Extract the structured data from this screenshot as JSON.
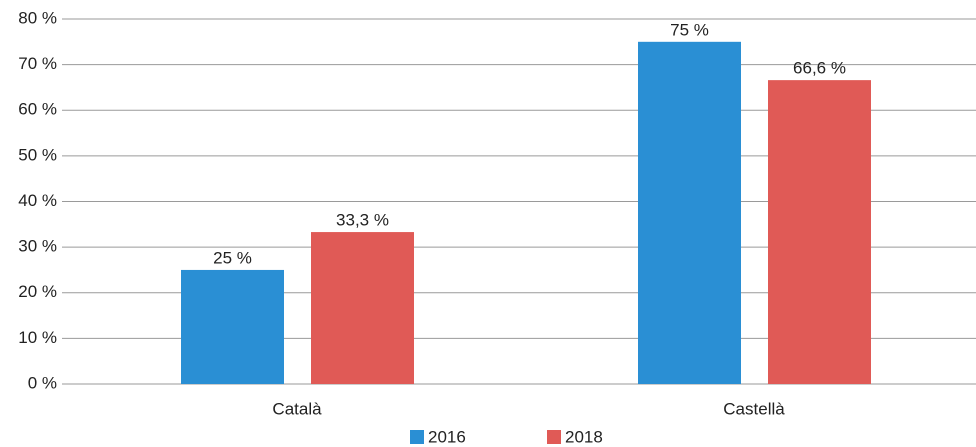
{
  "chart_data": {
    "type": "bar",
    "categories": [
      "Català",
      "Castellà"
    ],
    "series": [
      {
        "name": "2016",
        "color": "#2a8fd4",
        "values": [
          25,
          75
        ],
        "value_labels": [
          "25 %",
          "75 %"
        ]
      },
      {
        "name": "2018",
        "color": "#e05a56",
        "values": [
          33.3,
          66.6
        ],
        "value_labels": [
          "33,3 %",
          "66,6 %"
        ]
      }
    ],
    "ylim": [
      0,
      80
    ],
    "yticks": [
      {
        "value": 0,
        "label": "0 %"
      },
      {
        "value": 10,
        "label": "10 %"
      },
      {
        "value": 20,
        "label": "20 %"
      },
      {
        "value": 30,
        "label": "30 %"
      },
      {
        "value": 40,
        "label": "40 %"
      },
      {
        "value": 50,
        "label": "50 %"
      },
      {
        "value": 60,
        "label": "60 %"
      },
      {
        "value": 70,
        "label": "70 %"
      },
      {
        "value": 80,
        "label": "80 %"
      }
    ],
    "grid": true,
    "legend": "bottom"
  }
}
